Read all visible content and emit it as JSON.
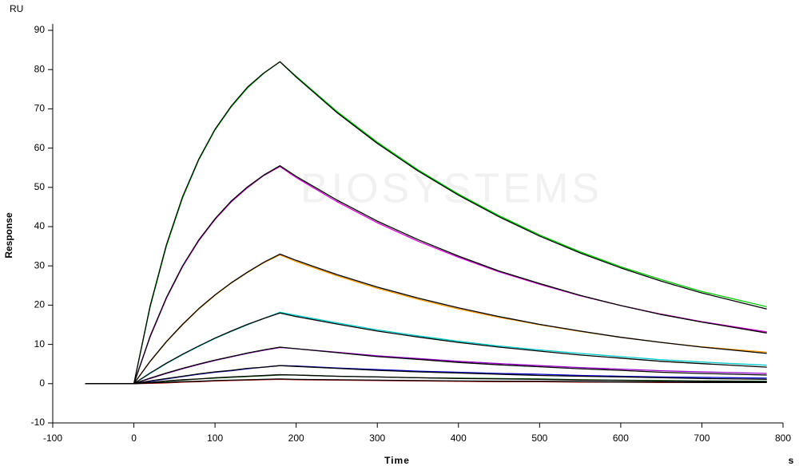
{
  "chart_data": {
    "type": "line",
    "y_unit": "RU",
    "ylabel": "Response",
    "xlabel": "Time",
    "x_unit": "s",
    "watermark": "BIOSYSTEMS",
    "x": [
      -60,
      0,
      20,
      40,
      60,
      80,
      100,
      120,
      140,
      160,
      180,
      200,
      250,
      300,
      350,
      400,
      450,
      500,
      550,
      600,
      650,
      700,
      780
    ],
    "xlim": [
      -100,
      800
    ],
    "xticks": [
      -100,
      0,
      100,
      200,
      300,
      400,
      500,
      600,
      700,
      800
    ],
    "ylim": [
      -10,
      90
    ],
    "yticks": [
      -10,
      0,
      10,
      20,
      30,
      40,
      50,
      60,
      70,
      80,
      90
    ],
    "series": [
      {
        "color": "#00cc00",
        "values": [
          0,
          0,
          19.5,
          35.0,
          47.3,
          57.0,
          64.6,
          70.5,
          75.3,
          79.0,
          82.0,
          78.3,
          69.4,
          61.5,
          54.5,
          48.3,
          42.8,
          37.9,
          33.6,
          29.8,
          26.5,
          23.5,
          19.6
        ]
      },
      {
        "color": "#cc00cc",
        "values": [
          0,
          0,
          11.9,
          21.7,
          29.8,
          36.4,
          41.8,
          46.3,
          49.9,
          53.0,
          55.3,
          52.5,
          46.4,
          41.0,
          36.3,
          32.2,
          28.5,
          25.3,
          22.4,
          19.9,
          17.7,
          15.8,
          13.2
        ]
      },
      {
        "color": "#ff9900",
        "values": [
          0,
          0,
          5.6,
          10.6,
          15.0,
          19.0,
          22.5,
          25.6,
          28.3,
          30.8,
          32.8,
          31.1,
          27.5,
          24.3,
          21.5,
          19.0,
          16.9,
          15.0,
          13.3,
          11.8,
          10.5,
          9.4,
          8.0
        ]
      },
      {
        "color": "#00cccc",
        "values": [
          0,
          0,
          2.6,
          5.1,
          7.4,
          9.5,
          11.5,
          13.3,
          15.0,
          16.6,
          18.2,
          17.4,
          15.5,
          13.7,
          12.2,
          10.8,
          9.6,
          8.6,
          7.7,
          6.9,
          6.1,
          5.5,
          4.7
        ]
      },
      {
        "color": "#9900cc",
        "values": [
          0,
          0,
          1.3,
          2.6,
          3.8,
          4.9,
          5.9,
          6.8,
          7.7,
          8.5,
          9.2,
          8.9,
          8.0,
          7.1,
          6.4,
          5.7,
          5.1,
          4.6,
          4.1,
          3.7,
          3.3,
          3.0,
          2.6
        ]
      },
      {
        "color": "#0000cc",
        "values": [
          0,
          0,
          0.6,
          1.2,
          1.8,
          2.4,
          2.9,
          3.3,
          3.8,
          4.2,
          4.6,
          4.5,
          4.0,
          3.6,
          3.2,
          2.9,
          2.6,
          2.4,
          2.1,
          1.9,
          1.7,
          1.6,
          1.4
        ]
      },
      {
        "color": "#006600",
        "values": [
          0,
          0,
          0.3,
          0.6,
          0.9,
          1.2,
          1.4,
          1.6,
          1.8,
          2.0,
          2.2,
          2.2,
          1.9,
          1.7,
          1.5,
          1.4,
          1.3,
          1.2,
          1.0,
          0.9,
          0.8,
          0.7,
          0.6
        ]
      },
      {
        "color": "#cc0000",
        "values": [
          0,
          0,
          0.1,
          0.2,
          0.4,
          0.5,
          0.7,
          0.8,
          0.9,
          1.0,
          1.1,
          1.0,
          0.9,
          0.8,
          0.7,
          0.6,
          0.5,
          0.5,
          0.4,
          0.4,
          0.3,
          0.3,
          0.3
        ]
      },
      {
        "color": "#000000",
        "values": [
          0,
          0,
          19.8,
          35.3,
          47.6,
          57.2,
          64.8,
          70.7,
          75.5,
          79.1,
          82.0,
          78.1,
          69.1,
          61.2,
          54.2,
          48.0,
          42.5,
          37.6,
          33.3,
          29.5,
          26.1,
          23.1,
          19.0
        ]
      },
      {
        "color": "#000000",
        "values": [
          0,
          0,
          12.1,
          21.9,
          30.0,
          36.6,
          42.0,
          46.5,
          50.1,
          53.1,
          55.5,
          52.8,
          46.8,
          41.4,
          36.7,
          32.5,
          28.7,
          25.5,
          22.5,
          19.9,
          17.6,
          15.7,
          12.9
        ]
      },
      {
        "color": "#000000",
        "values": [
          0,
          0,
          5.7,
          10.7,
          15.1,
          19.1,
          22.6,
          25.7,
          28.4,
          30.9,
          33.0,
          31.4,
          27.8,
          24.6,
          21.8,
          19.3,
          17.1,
          15.1,
          13.4,
          11.8,
          10.5,
          9.3,
          7.7
        ]
      },
      {
        "color": "#000000",
        "values": [
          0,
          0,
          2.7,
          5.2,
          7.5,
          9.6,
          11.6,
          13.4,
          15.1,
          16.6,
          18.0,
          17.1,
          15.2,
          13.4,
          11.9,
          10.5,
          9.3,
          8.3,
          7.3,
          6.5,
          5.7,
          5.1,
          4.2
        ]
      },
      {
        "color": "#000000",
        "values": [
          0,
          0,
          1.4,
          2.7,
          3.9,
          5.0,
          6.0,
          6.9,
          7.8,
          8.6,
          9.3,
          8.9,
          7.9,
          6.9,
          6.2,
          5.4,
          4.8,
          4.3,
          3.8,
          3.4,
          2.9,
          2.6,
          2.2
        ]
      },
      {
        "color": "#000000",
        "values": [
          0,
          0,
          0.7,
          1.3,
          1.9,
          2.5,
          3.0,
          3.4,
          3.9,
          4.2,
          4.6,
          4.4,
          3.9,
          3.4,
          3.0,
          2.7,
          2.4,
          2.1,
          1.9,
          1.7,
          1.5,
          1.3,
          1.1
        ]
      },
      {
        "color": "#000000",
        "values": [
          0,
          0,
          0.3,
          0.7,
          1.0,
          1.2,
          1.5,
          1.7,
          1.9,
          2.1,
          2.3,
          2.2,
          1.9,
          1.7,
          1.5,
          1.3,
          1.2,
          1.1,
          0.9,
          0.8,
          0.7,
          0.6,
          0.5
        ]
      },
      {
        "color": "#000000",
        "values": [
          0,
          0,
          0.2,
          0.3,
          0.5,
          0.6,
          0.8,
          0.9,
          1.0,
          1.1,
          1.2,
          1.1,
          1.0,
          0.9,
          0.8,
          0.7,
          0.6,
          0.6,
          0.5,
          0.4,
          0.4,
          0.3,
          0.3
        ]
      }
    ]
  }
}
